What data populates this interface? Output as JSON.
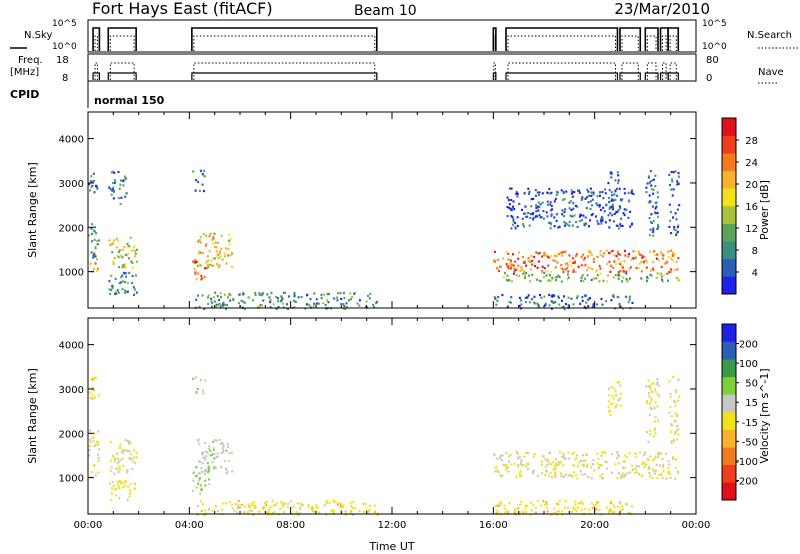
{
  "header": {
    "title": "Fort Hays East (fitACF)",
    "beam": "Beam 10",
    "date": "23/Mar/2010"
  },
  "status_panels": {
    "nsky_label": "N.Sky",
    "nsky_ticks": [
      "10^5",
      "10^0"
    ],
    "nsearch_label": "N.Search",
    "nsearch_ticks": [
      "10^5",
      "10^0"
    ],
    "freq_label_line1": "Freq.",
    "freq_label_line2": "[MHz]",
    "freq_ticks": [
      "18",
      "8"
    ],
    "nave_label": "Nave",
    "nave_ticks": [
      "80",
      "0"
    ],
    "cpid_label": "CPID",
    "cpid_value": "normal 150"
  },
  "chart_data": [
    {
      "type": "heatmap",
      "name": "power-panel",
      "ylabel": "Slant Range [km]",
      "xlabel": "",
      "yticks": [
        "1000",
        "2000",
        "3000",
        "4000"
      ],
      "ylim": [
        180,
        4600
      ],
      "xlim_hours": [
        0,
        24
      ],
      "colorbar": {
        "label": "Power [dB]",
        "ticks": [
          "4",
          "8",
          "12",
          "16",
          "20",
          "24",
          "28"
        ],
        "range": [
          0,
          32
        ],
        "colors": [
          "#1f20e8",
          "#2a5fb5",
          "#3a8f7e",
          "#5aa45a",
          "#a7c43a",
          "#f2e21a",
          "#f7b12a",
          "#f47a1f",
          "#ee3e1c",
          "#e0101a"
        ]
      },
      "echo_regions": [
        {
          "t0": 0.0,
          "t1": 0.4,
          "r0": 1000,
          "r1": 1300,
          "v": 22
        },
        {
          "t0": 0.0,
          "t1": 0.4,
          "r0": 1300,
          "r1": 2100,
          "v": 10
        },
        {
          "t0": 0.0,
          "t1": 0.4,
          "r0": 2800,
          "r1": 3300,
          "v": 6
        },
        {
          "t0": 0.8,
          "t1": 1.9,
          "r0": 1100,
          "r1": 1800,
          "v": 16
        },
        {
          "t0": 0.8,
          "t1": 1.9,
          "r0": 500,
          "r1": 1000,
          "v": 8
        },
        {
          "t0": 0.8,
          "t1": 1.5,
          "r0": 2500,
          "r1": 3300,
          "v": 7
        },
        {
          "t0": 4.1,
          "t1": 4.6,
          "r0": 800,
          "r1": 1300,
          "v": 26
        },
        {
          "t0": 4.3,
          "t1": 5.7,
          "r0": 1100,
          "r1": 1900,
          "v": 18
        },
        {
          "t0": 4.1,
          "t1": 4.6,
          "r0": 2800,
          "r1": 3300,
          "v": 6
        },
        {
          "t0": 4.2,
          "t1": 11.4,
          "r0": 180,
          "r1": 550,
          "v": 9
        },
        {
          "t0": 16.0,
          "t1": 23.3,
          "r0": 1000,
          "r1": 1500,
          "v": 24
        },
        {
          "t0": 16.0,
          "t1": 23.3,
          "r0": 800,
          "r1": 1000,
          "v": 12
        },
        {
          "t0": 16.0,
          "t1": 21.5,
          "r0": 180,
          "r1": 500,
          "v": 6
        },
        {
          "t0": 16.5,
          "t1": 21.5,
          "r0": 2000,
          "r1": 2900,
          "v": 4
        },
        {
          "t0": 20.5,
          "t1": 21.0,
          "r0": 2400,
          "r1": 3300,
          "v": 5
        },
        {
          "t0": 22.0,
          "t1": 22.5,
          "r0": 1800,
          "r1": 3300,
          "v": 6
        },
        {
          "t0": 22.9,
          "t1": 23.3,
          "r0": 1800,
          "r1": 3300,
          "v": 6
        }
      ]
    },
    {
      "type": "heatmap",
      "name": "velocity-panel",
      "ylabel": "Slant Range [km]",
      "xlabel": "Time UT",
      "yticks": [
        "1000",
        "2000",
        "3000",
        "4000"
      ],
      "xticks": [
        "00:00",
        "04:00",
        "08:00",
        "12:00",
        "16:00",
        "20:00",
        "00:00"
      ],
      "ylim": [
        180,
        4600
      ],
      "xlim_hours": [
        0,
        24
      ],
      "colorbar": {
        "label": "Velocity [m s^-1]",
        "ticks": [
          "-200",
          "-100",
          "-50",
          "-15",
          "15",
          "50",
          "100",
          "200"
        ],
        "range": [
          -250,
          250
        ],
        "colors": [
          "#e0101a",
          "#ee3e1c",
          "#f47a1f",
          "#f7b12a",
          "#f2e21a",
          "#c8c8c0",
          "#7fcf3a",
          "#3a9a4a",
          "#2a5fb5",
          "#1f20e8"
        ]
      },
      "echo_regions": [
        {
          "t0": 0.0,
          "t1": 0.4,
          "r0": 1000,
          "r1": 2100,
          "v": 0
        },
        {
          "t0": 0.0,
          "t1": 0.4,
          "r0": 2800,
          "r1": 3300,
          "v": -30
        },
        {
          "t0": 0.8,
          "t1": 1.9,
          "r0": 1100,
          "r1": 1900,
          "v": 0
        },
        {
          "t0": 0.8,
          "t1": 1.9,
          "r0": 500,
          "r1": 1000,
          "v": -20
        },
        {
          "t0": 4.1,
          "t1": 4.8,
          "r0": 600,
          "r1": 1300,
          "v": 60
        },
        {
          "t0": 4.3,
          "t1": 5.7,
          "r0": 1100,
          "r1": 1900,
          "v": 30
        },
        {
          "t0": 4.1,
          "t1": 4.6,
          "r0": 2800,
          "r1": 3300,
          "v": 40
        },
        {
          "t0": 4.2,
          "t1": 11.4,
          "r0": 180,
          "r1": 500,
          "v": -25
        },
        {
          "t0": 16.0,
          "t1": 23.3,
          "r0": 1000,
          "r1": 1600,
          "v": 0
        },
        {
          "t0": 16.0,
          "t1": 21.5,
          "r0": 180,
          "r1": 500,
          "v": -30
        },
        {
          "t0": 20.5,
          "t1": 21.0,
          "r0": 2400,
          "r1": 3300,
          "v": -20
        },
        {
          "t0": 22.0,
          "t1": 22.5,
          "r0": 1800,
          "r1": 3300,
          "v": 0
        },
        {
          "t0": 22.9,
          "t1": 23.3,
          "r0": 1800,
          "r1": 3300,
          "v": 0
        }
      ]
    }
  ]
}
